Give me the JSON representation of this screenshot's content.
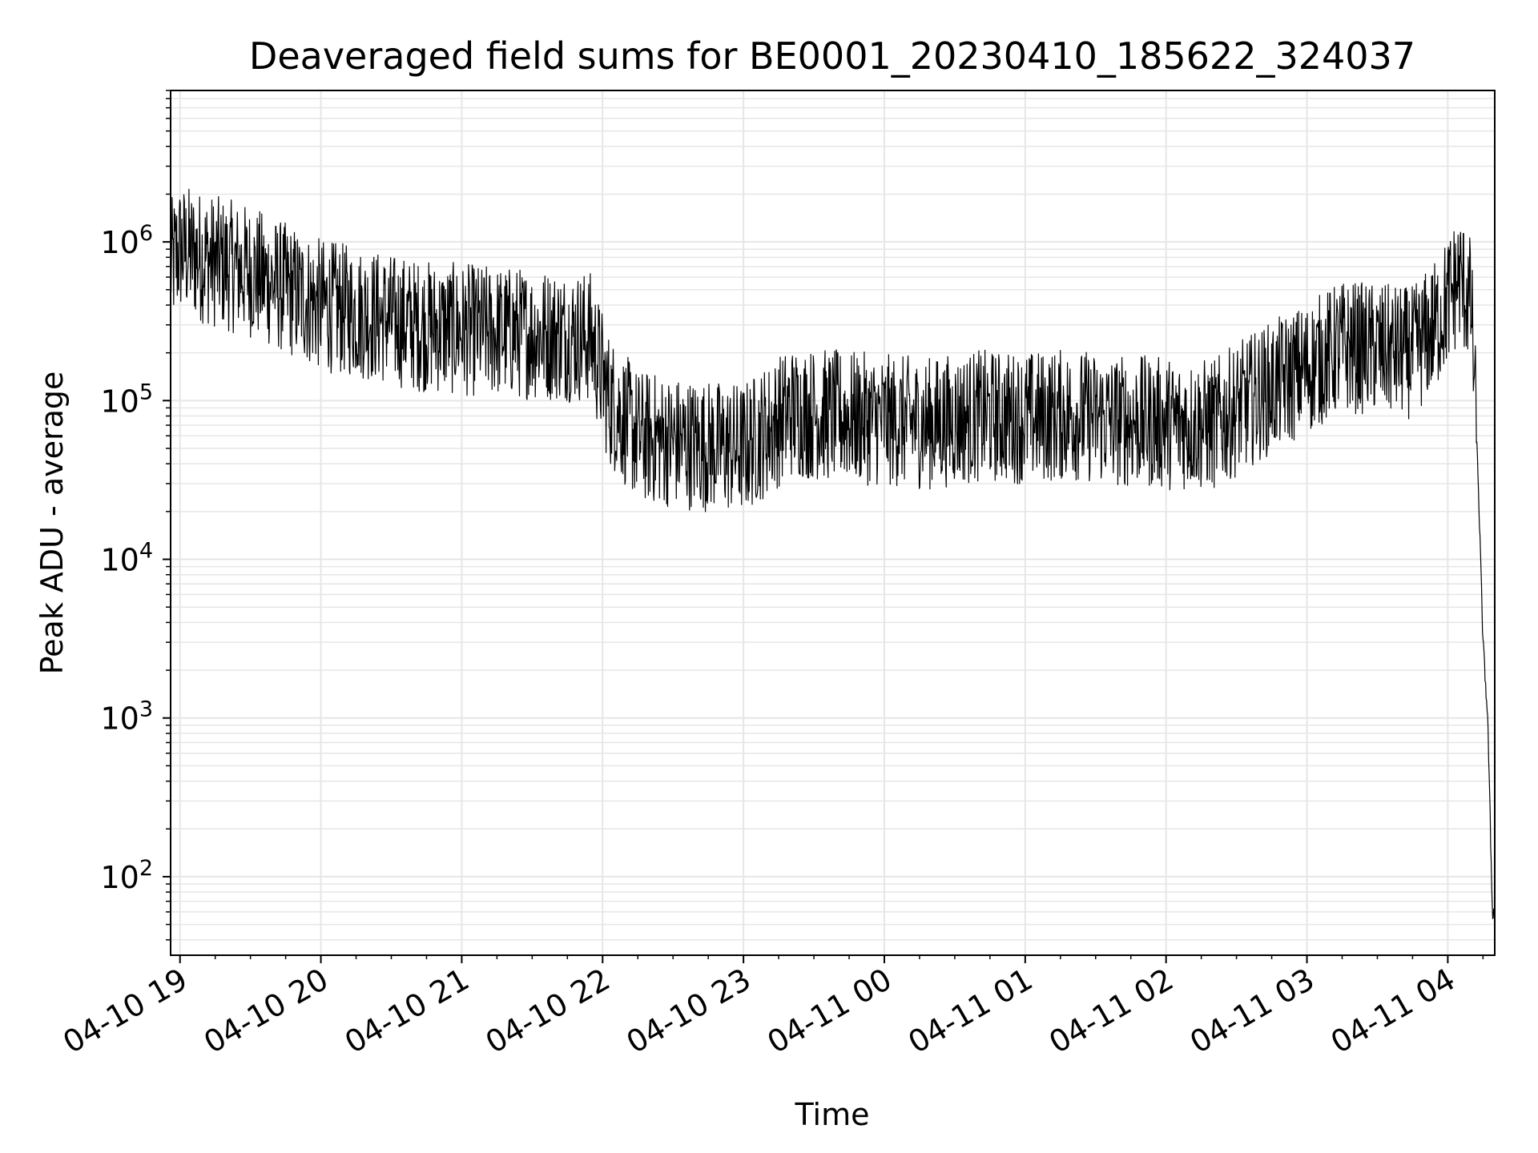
{
  "chart_data": {
    "type": "line",
    "title": "Deaveraged field sums for BE0001_20230410_185622_324037",
    "xlabel": "Time",
    "ylabel": "Peak ADU - average",
    "x_ticks": [
      "04-10 19",
      "04-10 20",
      "04-10 21",
      "04-10 22",
      "04-10 23",
      "04-11 00",
      "04-11 01",
      "04-11 02",
      "04-11 03",
      "04-11 04"
    ],
    "x_tick_times": [
      "2023-04-10T19:00",
      "2023-04-10T20:00",
      "2023-04-10T21:00",
      "2023-04-10T22:00",
      "2023-04-10T23:00",
      "2023-04-11T00:00",
      "2023-04-11T01:00",
      "2023-04-11T02:00",
      "2023-04-11T03:00",
      "2023-04-11T04:00"
    ],
    "xlim": [
      "2023-04-10T18:56",
      "2023-04-11T04:20"
    ],
    "y_scale": "log",
    "ylim": [
      32,
      9000000
    ],
    "y_ticks": [
      {
        "value": 100,
        "base": "10",
        "exp": "2"
      },
      {
        "value": 1000,
        "base": "10",
        "exp": "3"
      },
      {
        "value": 10000,
        "base": "10",
        "exp": "4"
      },
      {
        "value": 100000,
        "base": "10",
        "exp": "5"
      },
      {
        "value": 1000000,
        "base": "10",
        "exp": "6"
      }
    ],
    "grid": true,
    "line_color": "#000000",
    "grid_color": "#e6e6e6",
    "series": [
      {
        "x": [
          "2023-04-10T18:56",
          "2023-04-10T19:00",
          "2023-04-10T19:15",
          "2023-04-10T19:30",
          "2023-04-10T19:40",
          "2023-04-10T20:00",
          "2023-04-10T20:20",
          "2023-04-10T20:40",
          "2023-04-10T21:00",
          "2023-04-10T21:20",
          "2023-04-10T21:40",
          "2023-04-10T21:55",
          "2023-04-10T22:03",
          "2023-04-10T22:15",
          "2023-04-10T22:30",
          "2023-04-10T22:45",
          "2023-04-10T23:00",
          "2023-04-10T23:20",
          "2023-04-10T23:40",
          "2023-04-11T00:00",
          "2023-04-11T00:20",
          "2023-04-11T00:40",
          "2023-04-11T01:00",
          "2023-04-11T01:20",
          "2023-04-11T01:40",
          "2023-04-11T02:00",
          "2023-04-11T02:20",
          "2023-04-11T02:40",
          "2023-04-11T03:00",
          "2023-04-11T03:15",
          "2023-04-11T03:30",
          "2023-04-11T03:45",
          "2023-04-11T03:55",
          "2023-04-11T04:05",
          "2023-04-11T04:10",
          "2023-04-11T04:13",
          "2023-04-11T04:15",
          "2023-04-11T04:17",
          "2023-04-11T04:19"
        ],
        "y": [
          700000,
          900000,
          750000,
          650000,
          550000,
          400000,
          350000,
          300000,
          280000,
          270000,
          260000,
          250000,
          100000,
          60000,
          55000,
          52000,
          50000,
          85000,
          80000,
          75000,
          72000,
          80000,
          78000,
          82000,
          75000,
          72000,
          70000,
          110000,
          160000,
          220000,
          210000,
          200000,
          300000,
          600000,
          400000,
          30000,
          3000,
          1000,
          60
        ]
      }
    ]
  }
}
